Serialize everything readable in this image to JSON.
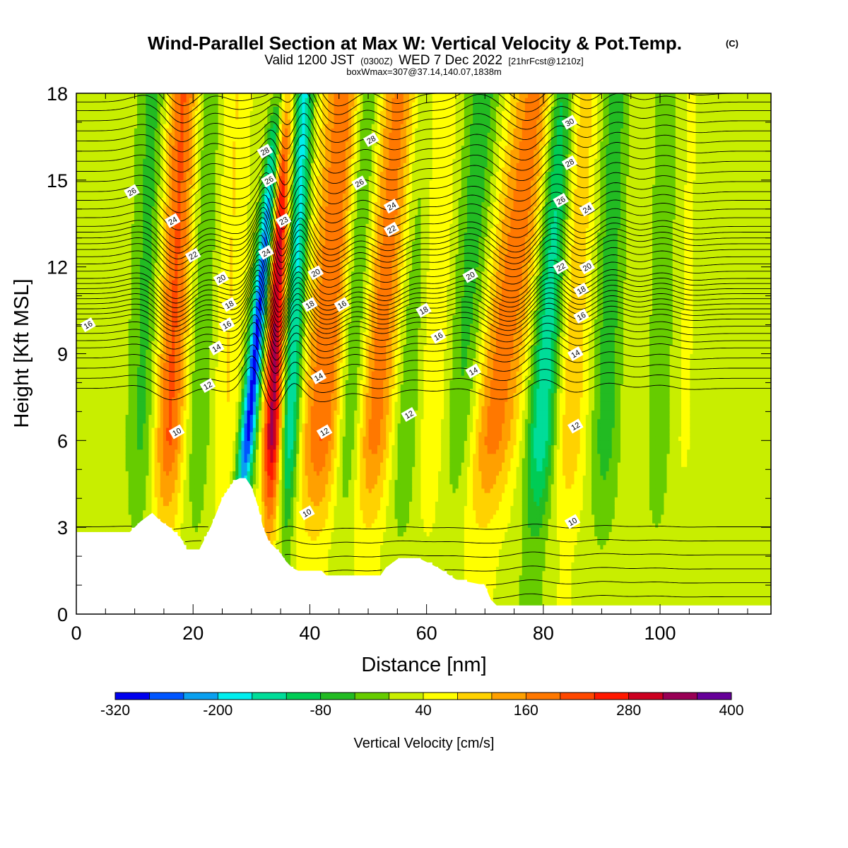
{
  "title": "Wind-Parallel Section at Max W: Vertical Velocity & Pot.Temp.",
  "copyright_mark": "(C)",
  "subtitle": {
    "lead": "Valid 1200 JST",
    "utc": "(0300Z)",
    "date": "WED 7 Dec 2022",
    "forecast": "[21hrFcst@1210z]"
  },
  "box_info": "boxWmax=307@37.14,140.07,1838m",
  "chart_data": {
    "type": "heatmap",
    "xlabel": "Distance [nm]",
    "ylabel": "Height [Kft MSL]",
    "xlim": [
      0,
      119
    ],
    "ylim": [
      0,
      18
    ],
    "x_ticks": [
      "0",
      "20",
      "40",
      "60",
      "80",
      "100"
    ],
    "x_tick_values": [
      0,
      20,
      40,
      60,
      80,
      100
    ],
    "y_ticks": [
      "0",
      "3",
      "6",
      "9",
      "12",
      "15",
      "18"
    ],
    "y_tick_values": [
      0,
      3,
      6,
      9,
      12,
      15,
      18
    ],
    "colorbar": {
      "label": "Vertical Velocity [cm/s]",
      "tick_labels": [
        "-320",
        "-200",
        "-80",
        "40",
        "160",
        "280",
        "400"
      ],
      "boundaries": [
        -320,
        -280,
        -240,
        -200,
        -160,
        -120,
        -80,
        -40,
        0,
        40,
        80,
        120,
        160,
        200,
        240,
        280,
        320,
        360,
        400
      ],
      "colors": [
        "#0000ee",
        "#0055ff",
        "#0aa0f0",
        "#00eeee",
        "#00dd99",
        "#00cc55",
        "#22bb22",
        "#66cc00",
        "#c8ee00",
        "#ffff00",
        "#ffd200",
        "#ffa000",
        "#ff7800",
        "#ff4800",
        "#ff1800",
        "#cc0020",
        "#990055",
        "#660099"
      ]
    },
    "updraft_bands": [
      {
        "x": 16.5,
        "w": 3.0,
        "peak": 190,
        "slope": 0.07
      },
      {
        "x": 26.0,
        "w": 2.5,
        "peak": 60,
        "slope": 0.05
      },
      {
        "x": 34.0,
        "w": 1.6,
        "peak": 310,
        "slope": 0.05
      },
      {
        "x": 43.0,
        "w": 3.8,
        "peak": 180,
        "slope": 0.12
      },
      {
        "x": 52.0,
        "w": 4.0,
        "peak": 165,
        "slope": 0.14
      },
      {
        "x": 61.0,
        "w": 3.0,
        "peak": 60,
        "slope": 0.06
      },
      {
        "x": 73.0,
        "w": 4.5,
        "peak": 160,
        "slope": 0.22
      },
      {
        "x": 85.0,
        "w": 3.0,
        "peak": 90,
        "slope": 0.06
      },
      {
        "x": 96.5,
        "w": 2.5,
        "peak": 25,
        "slope": 0.03
      },
      {
        "x": 104.0,
        "w": 2.5,
        "peak": 25,
        "slope": 0.03
      }
    ],
    "downdraft_bands": [
      {
        "x": 12.0,
        "w": 2.6,
        "peak": -85,
        "slope": 0.05
      },
      {
        "x": 21.0,
        "w": 2.6,
        "peak": -70,
        "slope": 0.05
      },
      {
        "x": 30.7,
        "w": 1.4,
        "peak": -320,
        "slope": 0.16
      },
      {
        "x": 37.2,
        "w": 1.6,
        "peak": -200,
        "slope": 0.07
      },
      {
        "x": 47.5,
        "w": 2.5,
        "peak": -140,
        "slope": 0.08
      },
      {
        "x": 57.0,
        "w": 2.8,
        "peak": -90,
        "slope": 0.08
      },
      {
        "x": 67.0,
        "w": 3.0,
        "peak": -90,
        "slope": 0.1
      },
      {
        "x": 80.5,
        "w": 2.5,
        "peak": -190,
        "slope": 0.1
      },
      {
        "x": 91.0,
        "w": 2.5,
        "peak": -85,
        "slope": 0.05
      },
      {
        "x": 100.0,
        "w": 2.5,
        "peak": -60,
        "slope": 0.04
      }
    ],
    "terrain": [
      [
        0,
        2.8
      ],
      [
        9,
        2.8
      ],
      [
        11,
        3.2
      ],
      [
        13,
        3.5
      ],
      [
        14.5,
        3.2
      ],
      [
        16,
        3.0
      ],
      [
        18,
        2.6
      ],
      [
        19,
        2.2
      ],
      [
        21,
        2.2
      ],
      [
        22,
        2.6
      ],
      [
        23,
        3.0
      ],
      [
        24,
        3.5
      ],
      [
        25,
        4.0
      ],
      [
        26,
        4.3
      ],
      [
        27,
        4.6
      ],
      [
        28,
        4.7
      ],
      [
        29,
        4.7
      ],
      [
        30,
        4.4
      ],
      [
        31,
        3.8
      ],
      [
        32,
        3.0
      ],
      [
        33,
        2.5
      ],
      [
        34,
        2.3
      ],
      [
        35,
        2.1
      ],
      [
        36,
        1.8
      ],
      [
        37,
        1.6
      ],
      [
        38,
        1.5
      ],
      [
        42,
        1.5
      ],
      [
        43,
        1.3
      ],
      [
        52,
        1.3
      ],
      [
        53,
        1.6
      ],
      [
        55,
        1.9
      ],
      [
        59,
        1.9
      ],
      [
        62,
        1.6
      ],
      [
        65,
        1.2
      ],
      [
        70,
        1.0
      ],
      [
        71,
        0.5
      ],
      [
        72,
        0.3
      ],
      [
        119,
        0.3
      ]
    ],
    "theta_levels_kft": [
      {
        "label": 10,
        "z": 3.5
      },
      {
        "label": 12,
        "z": 7.8
      },
      {
        "label": 14,
        "z": 9.2
      },
      {
        "label": 16,
        "z": 10.2
      },
      {
        "label": 18,
        "z": 10.9
      },
      {
        "label": 20,
        "z": 11.6
      },
      {
        "label": 22,
        "z": 12.6
      },
      {
        "label": 24,
        "z": 13.4
      },
      {
        "label": 26,
        "z": 14.6
      },
      {
        "label": 28,
        "z": 16.0
      },
      {
        "label": 30,
        "z": 17.4
      }
    ],
    "contour_labels": [
      {
        "text": "28",
        "x": 32.3,
        "z": 16.0
      },
      {
        "text": "26",
        "x": 33.0,
        "z": 15.0
      },
      {
        "text": "26",
        "x": 9.5,
        "z": 14.6
      },
      {
        "text": "24",
        "x": 16.5,
        "z": 13.6
      },
      {
        "text": "22",
        "x": 20.0,
        "z": 12.4
      },
      {
        "text": "23",
        "x": 35.5,
        "z": 13.6
      },
      {
        "text": "24",
        "x": 32.5,
        "z": 12.5
      },
      {
        "text": "20",
        "x": 24.8,
        "z": 11.6
      },
      {
        "text": "18",
        "x": 26.2,
        "z": 10.7
      },
      {
        "text": "16",
        "x": 25.8,
        "z": 10.0
      },
      {
        "text": "16",
        "x": 2.0,
        "z": 10.0
      },
      {
        "text": "14",
        "x": 24.0,
        "z": 9.2
      },
      {
        "text": "12",
        "x": 22.5,
        "z": 7.9
      },
      {
        "text": "10",
        "x": 17.2,
        "z": 6.3
      },
      {
        "text": "28",
        "x": 50.5,
        "z": 16.4
      },
      {
        "text": "26",
        "x": 48.5,
        "z": 14.9
      },
      {
        "text": "24",
        "x": 54.0,
        "z": 14.1
      },
      {
        "text": "22",
        "x": 54.0,
        "z": 13.3
      },
      {
        "text": "20",
        "x": 41.0,
        "z": 11.8
      },
      {
        "text": "18",
        "x": 40.0,
        "z": 10.7
      },
      {
        "text": "16",
        "x": 45.5,
        "z": 10.7
      },
      {
        "text": "14",
        "x": 41.5,
        "z": 8.2
      },
      {
        "text": "12",
        "x": 42.5,
        "z": 6.3
      },
      {
        "text": "10",
        "x": 39.5,
        "z": 3.5
      },
      {
        "text": "12",
        "x": 57.0,
        "z": 6.9
      },
      {
        "text": "14",
        "x": 68.0,
        "z": 8.4
      },
      {
        "text": "16",
        "x": 62.0,
        "z": 9.6
      },
      {
        "text": "18",
        "x": 59.5,
        "z": 10.5
      },
      {
        "text": "20",
        "x": 67.5,
        "z": 11.7
      },
      {
        "text": "30",
        "x": 84.5,
        "z": 17.0
      },
      {
        "text": "28",
        "x": 84.5,
        "z": 15.6
      },
      {
        "text": "26",
        "x": 83.0,
        "z": 14.3
      },
      {
        "text": "24",
        "x": 87.5,
        "z": 14.0
      },
      {
        "text": "22",
        "x": 83.0,
        "z": 12.0
      },
      {
        "text": "20",
        "x": 87.5,
        "z": 12.0
      },
      {
        "text": "18",
        "x": 86.5,
        "z": 11.2
      },
      {
        "text": "16",
        "x": 86.5,
        "z": 10.3
      },
      {
        "text": "14",
        "x": 85.5,
        "z": 9.0
      },
      {
        "text": "12",
        "x": 85.5,
        "z": 6.5
      },
      {
        "text": "10",
        "x": 85.0,
        "z": 3.2
      }
    ]
  }
}
